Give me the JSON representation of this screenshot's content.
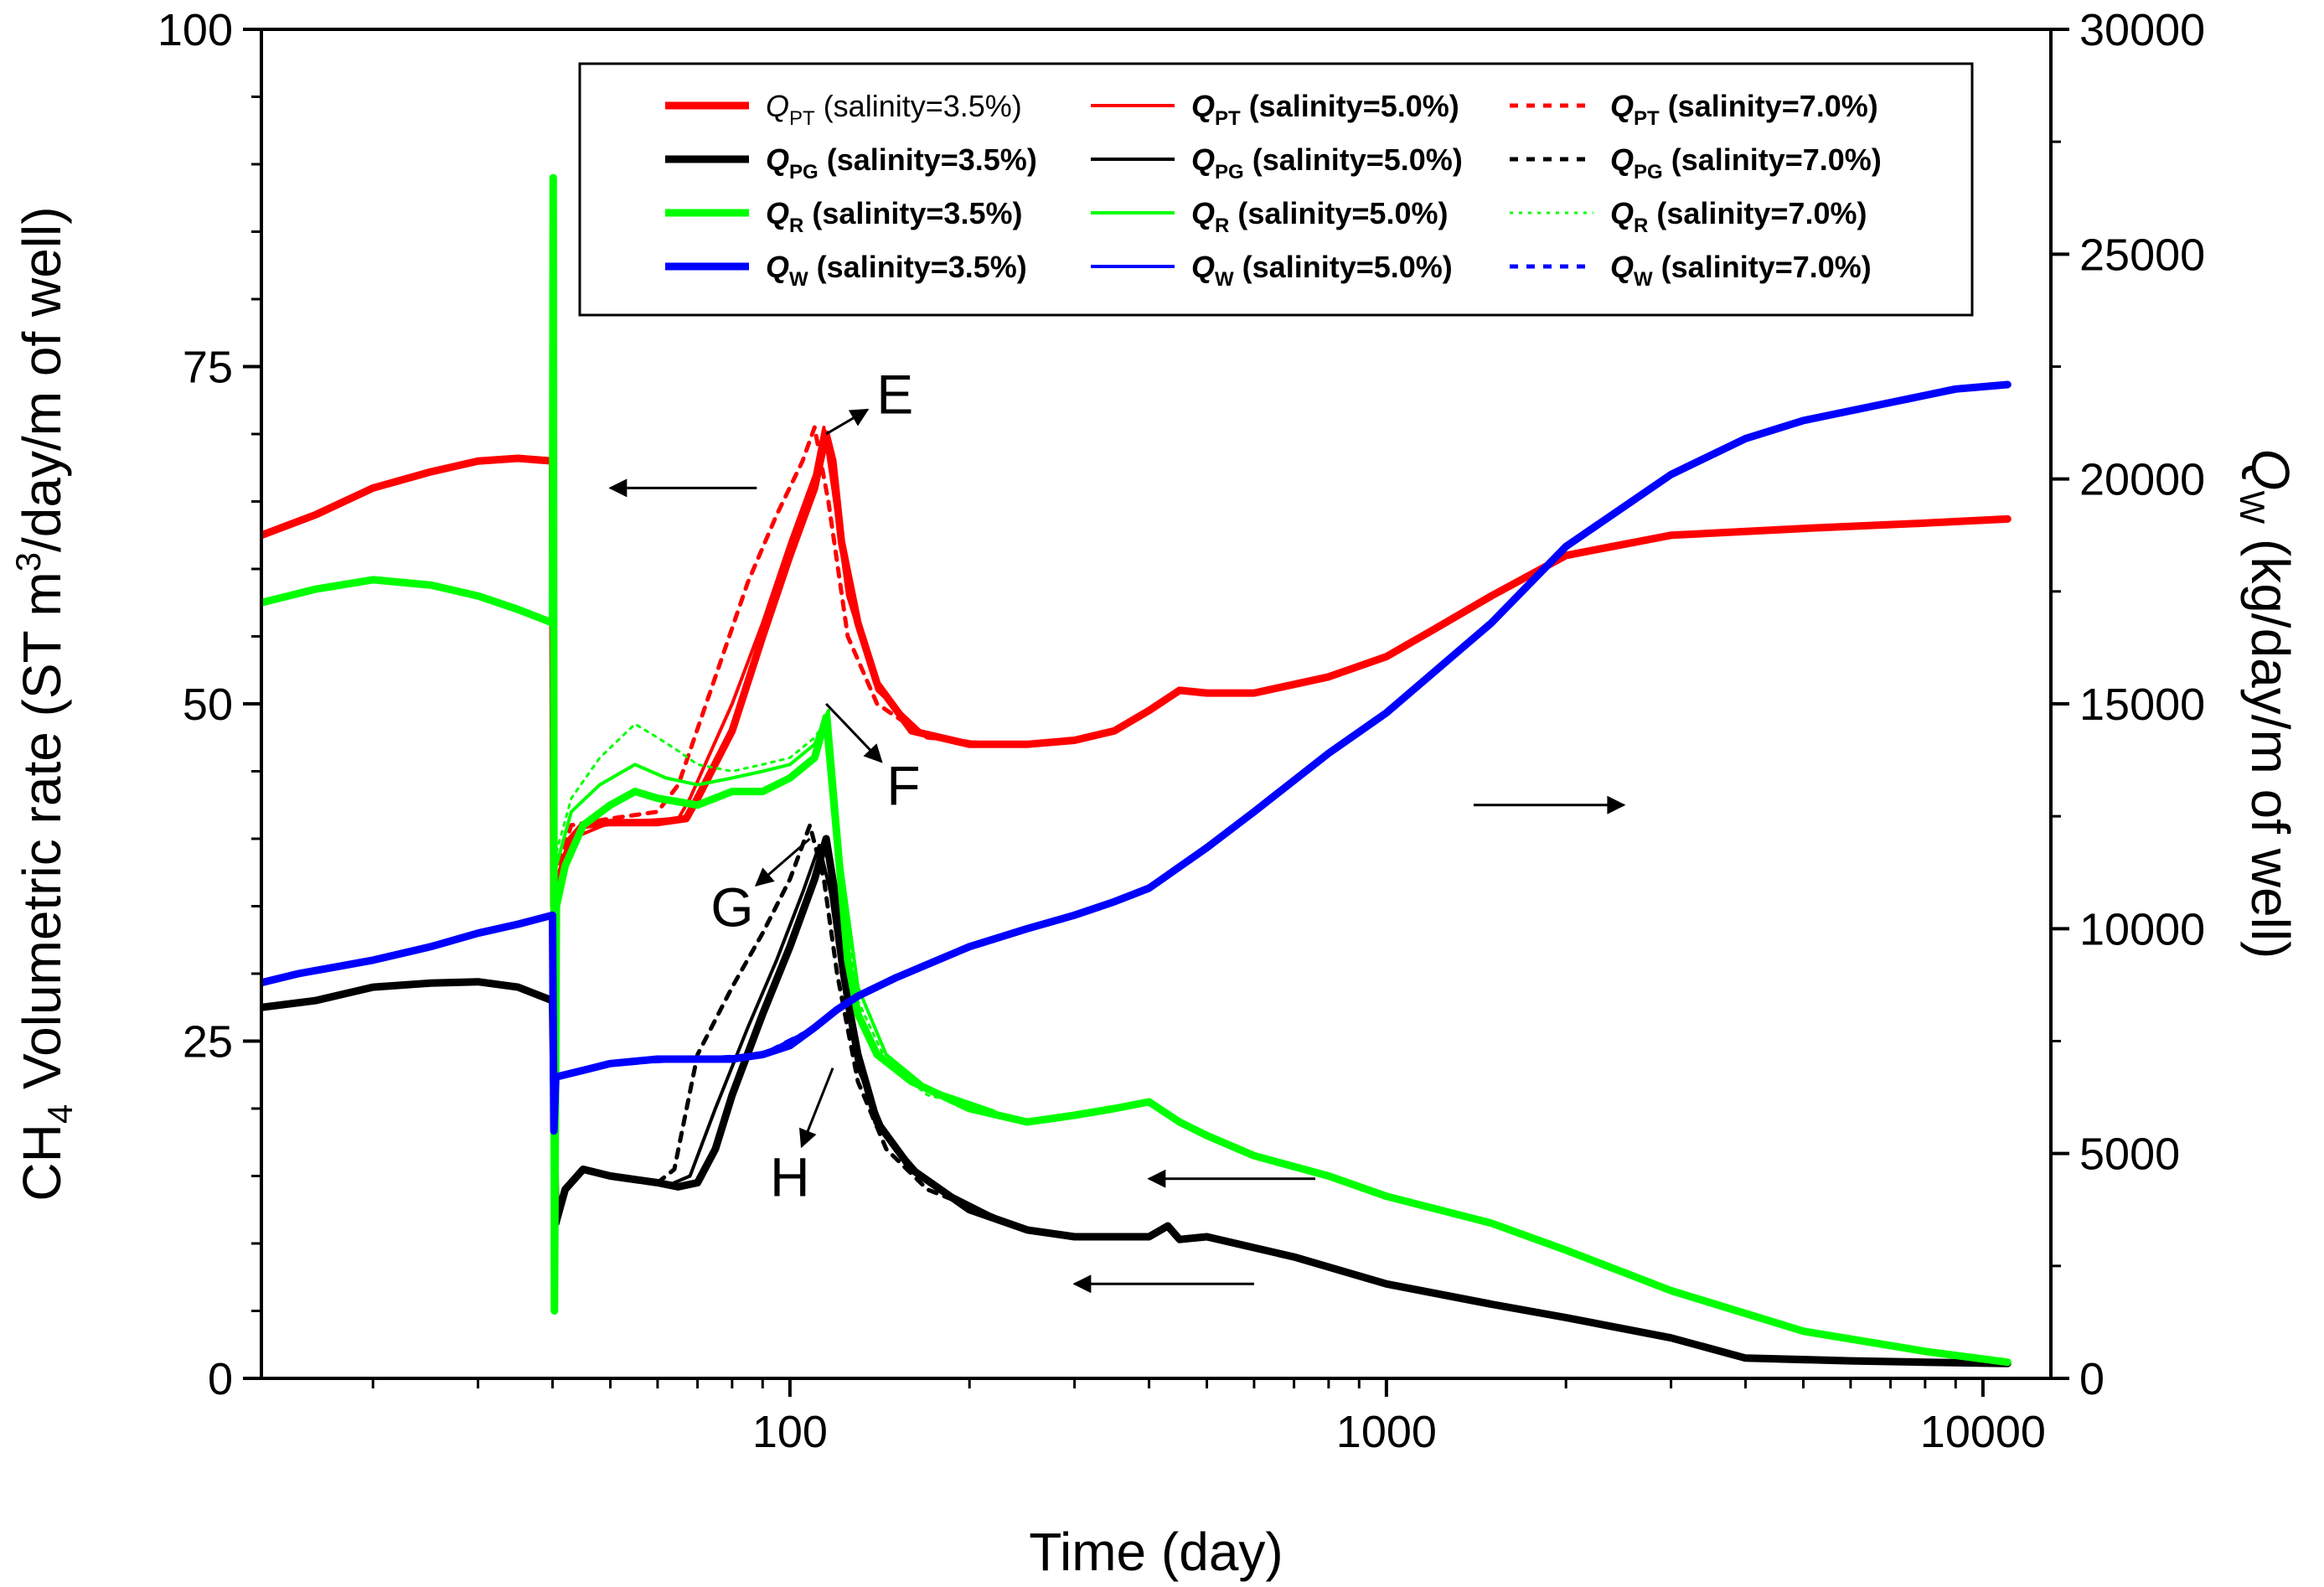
{
  "chart_data": {
    "type": "line",
    "xlabel": "Time (day)",
    "x_scale": "log",
    "xlim": [
      13,
      13000
    ],
    "x_ticks": [
      100,
      1000,
      10000
    ],
    "x_tick_labels": [
      "100",
      "1000",
      "10000"
    ],
    "ylabel_left": {
      "prefix": "CH",
      "sub": "4",
      "mid": " Volumetric rate (ST m",
      "sup": "3",
      "suffix": "/day/m of well)"
    },
    "ylim_left": [
      0,
      100
    ],
    "y_ticks_left": [
      0,
      25,
      50,
      75,
      100
    ],
    "y_tick_labels_left": [
      "0",
      "25",
      "50",
      "75",
      "100"
    ],
    "ylabel_right": {
      "q": "Q",
      "sub": "W",
      "rest": " (kg/day/m of well)"
    },
    "ylim_right": [
      0,
      30000
    ],
    "y_ticks_right": [
      0,
      5000,
      10000,
      15000,
      20000,
      25000,
      30000
    ],
    "y_tick_labels_right": [
      "0",
      "5000",
      "10000",
      "15000",
      "20000",
      "25000",
      "30000"
    ],
    "grid": false,
    "legend_position": "top",
    "legend": [
      {
        "q": "Q",
        "sub": "PT",
        "label": "(salinity=3.5%)",
        "color": "#ff0000",
        "style": "thick",
        "bold": false
      },
      {
        "q": "Q",
        "sub": "PT",
        "label": "(salinity=5.0%)",
        "color": "#ff0000",
        "style": "thin",
        "bold": true
      },
      {
        "q": "Q",
        "sub": "PT",
        "label": "(salinity=7.0%)",
        "color": "#ff0000",
        "style": "dash",
        "bold": true
      },
      {
        "q": "Q",
        "sub": "PG",
        "label": "(salinity=3.5%)",
        "color": "#000000",
        "style": "thick",
        "bold": true
      },
      {
        "q": "Q",
        "sub": "PG",
        "label": "(salinity=5.0%)",
        "color": "#000000",
        "style": "thin",
        "bold": true
      },
      {
        "q": "Q",
        "sub": "PG",
        "label": "(salinity=7.0%)",
        "color": "#000000",
        "style": "dash",
        "bold": true
      },
      {
        "q": "Q",
        "sub": "R",
        "label": "(salinity=3.5%)",
        "color": "#00ff00",
        "style": "thick",
        "bold": true
      },
      {
        "q": "Q",
        "sub": "R",
        "label": "(salinity=5.0%)",
        "color": "#00ff00",
        "style": "thin",
        "bold": true
      },
      {
        "q": "Q",
        "sub": "R",
        "label": "(salinity=7.0%)",
        "color": "#00ff00",
        "style": "dot",
        "bold": true
      },
      {
        "q": "Q",
        "sub": "W",
        "label": "(salinity=3.5%)",
        "color": "#0000ff",
        "style": "thick",
        "bold": true
      },
      {
        "q": "Q",
        "sub": "W",
        "label": "(salinity=5.0%)",
        "color": "#0000ff",
        "style": "thin",
        "bold": true
      },
      {
        "q": "Q",
        "sub": "W",
        "label": "(salinity=7.0%)",
        "color": "#0000ff",
        "style": "dash",
        "bold": true
      }
    ],
    "annotations": [
      {
        "text": "E",
        "target": [
          115,
          70
        ],
        "label_at": [
          150,
          73
        ]
      },
      {
        "text": "F",
        "target": [
          115,
          50
        ],
        "label_at": [
          155,
          44
        ]
      },
      {
        "text": "G",
        "target": [
          108,
          40
        ],
        "label_at": [
          80,
          35
        ]
      },
      {
        "text": "H",
        "target": [
          118,
          23
        ],
        "label_at": [
          100,
          15
        ]
      }
    ],
    "axis_arrows": [
      {
        "axis": "left",
        "from": [
          88,
          66
        ],
        "to": [
          50,
          66
        ]
      },
      {
        "axis": "right",
        "from": [
          1400,
          42.5
        ],
        "to": [
          2500,
          42.5
        ]
      },
      {
        "axis": "left",
        "from": [
          760,
          14.8
        ],
        "to": [
          400,
          14.8
        ]
      },
      {
        "axis": "left",
        "from": [
          600,
          7
        ],
        "to": [
          300,
          7
        ]
      }
    ],
    "series": [
      {
        "name": "Q_PT (salinity=3.5%)",
        "axis": "left",
        "color": "#ff0000",
        "style": "thick",
        "x": [
          13,
          16,
          20,
          25,
          30,
          35,
          40,
          40.2,
          41,
          43,
          45,
          50,
          60,
          67,
          70,
          80,
          90,
          100,
          110,
          115,
          118,
          122,
          130,
          140,
          160,
          200,
          250,
          300,
          350,
          400,
          450,
          500,
          600,
          800,
          1000,
          1200,
          1500,
          2000,
          3000,
          5000,
          8000,
          11000
        ],
        "y": [
          62.5,
          64,
          66,
          67.2,
          68,
          68.2,
          68,
          35,
          37,
          40,
          41,
          41.2,
          41.2,
          41.5,
          43,
          48,
          55,
          61,
          66,
          70,
          68,
          62,
          56,
          51.5,
          48,
          47,
          47,
          47.3,
          48,
          49.5,
          51,
          50.8,
          50.8,
          52,
          53.5,
          55.5,
          58,
          61,
          62.5,
          63,
          63.4,
          63.7
        ]
      },
      {
        "name": "Q_PT (salinity=5.0%)",
        "axis": "left",
        "color": "#ff0000",
        "style": "thin",
        "x": [
          40.2,
          43,
          50,
          65,
          68,
          80,
          90,
          100,
          110,
          114,
          118,
          125,
          140,
          170,
          220
        ],
        "y": [
          36,
          40,
          41.2,
          41.5,
          43,
          50,
          56,
          62,
          67,
          70.5,
          66,
          58,
          51,
          47.5,
          47
        ]
      },
      {
        "name": "Q_PT (salinity=7.0%)",
        "axis": "left",
        "color": "#ff0000",
        "style": "dash",
        "x": [
          40.2,
          43,
          50,
          60,
          65,
          75,
          85,
          95,
          105,
          110,
          116,
          125,
          140,
          170,
          220
        ],
        "y": [
          37,
          41,
          41.5,
          42,
          44,
          52,
          59,
          64,
          68,
          70.5,
          65,
          55,
          50,
          47.5,
          47
        ]
      },
      {
        "name": "Q_PG (salinity=3.5%)",
        "axis": "left",
        "color": "#000000",
        "style": "thick",
        "x": [
          13,
          16,
          20,
          25,
          30,
          35,
          40,
          40.5,
          42,
          45,
          50,
          60,
          65,
          70,
          75,
          80,
          90,
          100,
          110,
          115,
          120,
          125,
          130,
          140,
          160,
          200,
          250,
          300,
          400,
          430,
          450,
          500,
          700,
          1000,
          1500,
          2000,
          3000,
          4000,
          6000,
          8000,
          11000
        ],
        "y": [
          27.5,
          28,
          29,
          29.3,
          29.4,
          29,
          28,
          11.5,
          14,
          15.5,
          15,
          14.5,
          14.2,
          14.5,
          17,
          21,
          27,
          32,
          37,
          40,
          35,
          28,
          24,
          19,
          15.5,
          12.5,
          11,
          10.5,
          10.5,
          11.3,
          10.3,
          10.5,
          9,
          7,
          5.5,
          4.5,
          3,
          1.5,
          1.3,
          1.2,
          1.1
        ]
      },
      {
        "name": "Q_PG (salinity=5.0%)",
        "axis": "left",
        "color": "#000000",
        "style": "thin",
        "x": [
          64,
          68,
          75,
          85,
          95,
          105,
          112,
          117,
          122,
          130,
          145,
          170,
          220
        ],
        "y": [
          14.5,
          15,
          20,
          26,
          31,
          36,
          39.5,
          36,
          30,
          23,
          18,
          14.5,
          12
        ]
      },
      {
        "name": "Q_PG (salinity=7.0%)",
        "axis": "left",
        "color": "#000000",
        "style": "dash",
        "x": [
          60,
          64,
          70,
          80,
          90,
          100,
          108,
          114,
          120,
          130,
          145,
          170,
          220
        ],
        "y": [
          14.5,
          15.5,
          24,
          29,
          33,
          37,
          41,
          37,
          30,
          22,
          17,
          14,
          12
        ]
      },
      {
        "name": "Q_R (salinity=3.5%)",
        "axis": "left",
        "color": "#00ff00",
        "style": "thick",
        "x": [
          13,
          16,
          20,
          25,
          30,
          35,
          40,
          40.1,
          40.3,
          40.6,
          42,
          45,
          50,
          55,
          60,
          70,
          80,
          90,
          100,
          110,
          115,
          120,
          125,
          130,
          140,
          160,
          200,
          250,
          300,
          350,
          400,
          450,
          500,
          600,
          800,
          1000,
          1500,
          2000,
          3000,
          5000,
          8000,
          11000
        ],
        "y": [
          57.5,
          58.5,
          59.2,
          58.8,
          58,
          57,
          56,
          89,
          5,
          35,
          38,
          41,
          42.5,
          43.5,
          43,
          42.5,
          43.5,
          43.5,
          44.5,
          46,
          49,
          40,
          31,
          27,
          24,
          22,
          20,
          19,
          19.5,
          20,
          20.5,
          19,
          18,
          16.5,
          15,
          13.5,
          11.5,
          9.5,
          6.5,
          3.5,
          2,
          1.2
        ]
      },
      {
        "name": "Q_R (salinity=5.0%)",
        "axis": "left",
        "color": "#00ff00",
        "style": "thin",
        "x": [
          40.6,
          43,
          48,
          55,
          62,
          70,
          80,
          90,
          100,
          110,
          116,
          122,
          130,
          145,
          170,
          220
        ],
        "y": [
          38,
          42,
          44,
          45.5,
          44.5,
          44,
          44.5,
          45,
          45.5,
          47,
          49.5,
          38,
          29,
          24,
          21.5,
          19.8
        ]
      },
      {
        "name": "Q_R (salinity=7.0%)",
        "axis": "left",
        "color": "#00ff00",
        "style": "dot",
        "x": [
          40.6,
          43,
          48,
          55,
          60,
          65,
          70,
          80,
          90,
          100,
          110,
          116,
          122,
          130,
          145,
          170,
          220
        ],
        "y": [
          39,
          43,
          46,
          48.5,
          47.5,
          46.5,
          45.5,
          45,
          45.5,
          46,
          47.5,
          49,
          37,
          28,
          23.5,
          21,
          19.8
        ]
      },
      {
        "name": "Q_W (salinity=3.5%)",
        "axis": "right",
        "color": "#0000ff",
        "style": "thick",
        "x": [
          13,
          15,
          20,
          25,
          30,
          35,
          40,
          40.2,
          40.5,
          45,
          50,
          60,
          70,
          80,
          90,
          100,
          110,
          120,
          130,
          150,
          200,
          250,
          300,
          350,
          400,
          500,
          600,
          800,
          1000,
          1500,
          2000,
          3000,
          4000,
          5000,
          7000,
          9000,
          11000
        ],
        "y": [
          8800,
          9000,
          9300,
          9600,
          9900,
          10100,
          10300,
          5500,
          6700,
          6850,
          7000,
          7100,
          7100,
          7100,
          7200,
          7400,
          7800,
          8200,
          8500,
          8900,
          9600,
          10000,
          10300,
          10600,
          10900,
          11800,
          12600,
          13900,
          14800,
          16800,
          18500,
          20100,
          20900,
          21300,
          21700,
          22000,
          22100
        ]
      },
      {
        "name": "Q_W (salinity=5.0%)",
        "axis": "right",
        "color": "#0000ff",
        "style": "thin",
        "x": [
          40.5,
          50,
          70,
          90,
          110,
          130,
          150
        ],
        "y": [
          6700,
          7000,
          7100,
          7200,
          7800,
          8500,
          8900
        ]
      },
      {
        "name": "Q_W (salinity=7.0%)",
        "axis": "right",
        "color": "#0000ff",
        "style": "dash",
        "x": [
          40.5,
          50,
          70,
          90,
          110,
          130,
          150
        ],
        "y": [
          6700,
          7000,
          7100,
          7200,
          7800,
          8500,
          8900
        ]
      }
    ]
  }
}
